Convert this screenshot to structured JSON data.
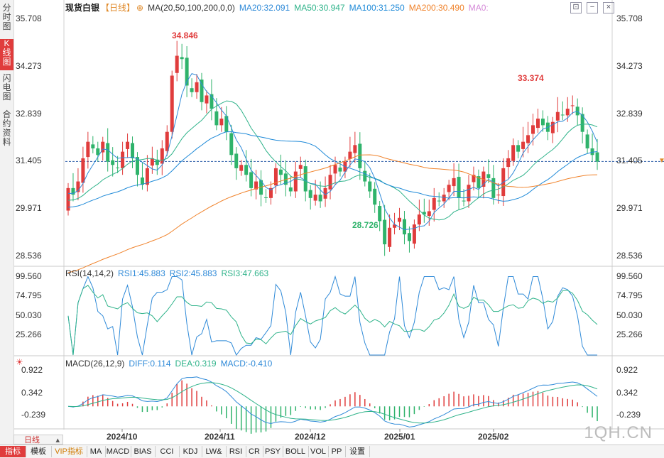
{
  "sidebar": {
    "tabs": [
      {
        "label": "分时图",
        "active": false
      },
      {
        "label": "K线图",
        "active": true
      },
      {
        "label": "闪电图",
        "active": false
      },
      {
        "label": "合约资料",
        "active": false
      }
    ]
  },
  "main_legend": {
    "name": "现货白银",
    "period": "【日线】",
    "indicator": "MA(20,50,100,200,0,0)",
    "ma20": "MA20:32.091",
    "ma50": "MA50:30.947",
    "ma100": "MA100:31.250",
    "ma200": "MA200:30.490",
    "ma0": "MA0:"
  },
  "toolbar_icons": [
    "restore-icon",
    "minimize-icon",
    "close-icon"
  ],
  "price_axis": {
    "ticks": [
      "35.708",
      "34.273",
      "32.839",
      "31.405",
      "29.971",
      "28.536"
    ],
    "current_price": "31.405"
  },
  "annotations": {
    "high_left": "34.846",
    "high_right": "33.374",
    "low": "28.726"
  },
  "rsi": {
    "title": "RSI(14,14,2)",
    "rsi1": "RSI1:45.883",
    "rsi2": "RSI2:45.883",
    "rsi3": "RSI3:47.663",
    "ticks": [
      "99.560",
      "74.795",
      "50.030",
      "25.266"
    ]
  },
  "macd": {
    "title": "MACD(26,12,9)",
    "diff": "DIFF:0.114",
    "dea": "DEA:0.319",
    "macd": "MACD:-0.410",
    "ticks": [
      "0.922",
      "0.342",
      "-0.239"
    ]
  },
  "x_axis": {
    "labels": [
      "2024/10",
      "2024/11",
      "2024/12",
      "2025/01",
      "2025/02"
    ]
  },
  "period_selector": "日线",
  "watermark": "1QH.CN",
  "bottom_tabs": [
    {
      "label": "指标",
      "active": true
    },
    {
      "label": "模板"
    },
    {
      "label": "VIP指标",
      "vip": true
    },
    {
      "label": "MA"
    },
    {
      "label": "MACD"
    },
    {
      "label": "BIAS"
    },
    {
      "label": "CCI"
    },
    {
      "label": "KDJ"
    },
    {
      "label": "LW&"
    },
    {
      "label": "RSI"
    },
    {
      "label": "CR"
    },
    {
      "label": "PSY"
    },
    {
      "label": "BOLL"
    },
    {
      "label": "VOL"
    },
    {
      "label": "PP"
    },
    {
      "label": "设置"
    }
  ],
  "colors": {
    "up": "#e03c3c",
    "down": "#2fb36b",
    "ma20": "#2f8ad8",
    "ma50": "#2fb38a",
    "ma100": "#1f8ad8",
    "ma200": "#f0822a",
    "rsi1": "#2f8ad8",
    "rsi3": "#2fb38a"
  },
  "chart_data": {
    "type": "candlestick",
    "period": "daily",
    "y_range": [
      28.3,
      35.9
    ],
    "x_labels": [
      "2024/10",
      "2024/11",
      "2024/12",
      "2025/01",
      "2025/02"
    ],
    "ohlc_close_estimate": [
      30.6,
      30.4,
      30.8,
      31.5,
      32.0,
      31.8,
      31.6,
      32.0,
      31.4,
      31.3,
      31.2,
      31.7,
      32.0,
      31.5,
      31.0,
      30.7,
      31.2,
      31.5,
      31.3,
      31.8,
      32.3,
      34.0,
      34.6,
      34.5,
      33.7,
      33.5,
      33.8,
      33.2,
      33.4,
      33.0,
      32.5,
      32.7,
      32.3,
      31.6,
      31.2,
      31.3,
      31.0,
      30.6,
      30.8,
      30.4,
      30.3,
      30.6,
      31.2,
      31.0,
      30.7,
      30.5,
      31.1,
      31.3,
      30.5,
      30.3,
      30.4,
      30.2,
      30.6,
      31.0,
      31.3,
      31.1,
      31.4,
      31.7,
      31.9,
      31.2,
      30.8,
      30.5,
      30.1,
      29.6,
      28.9,
      29.4,
      29.5,
      29.7,
      29.2,
      29.0,
      29.5,
      29.8,
      29.8,
      29.9,
      30.3,
      30.2,
      30.4,
      30.7,
      30.9,
      30.3,
      30.2,
      30.7,
      31.0,
      30.6,
      31.1,
      30.9,
      30.3,
      30.4,
      31.2,
      31.5,
      31.9,
      31.7,
      32.0,
      32.2,
      32.5,
      32.7,
      32.5,
      32.3,
      32.6,
      32.9,
      32.8,
      33.0,
      33.1,
      32.8,
      32.3,
      31.8,
      31.6,
      31.4
    ]
  }
}
